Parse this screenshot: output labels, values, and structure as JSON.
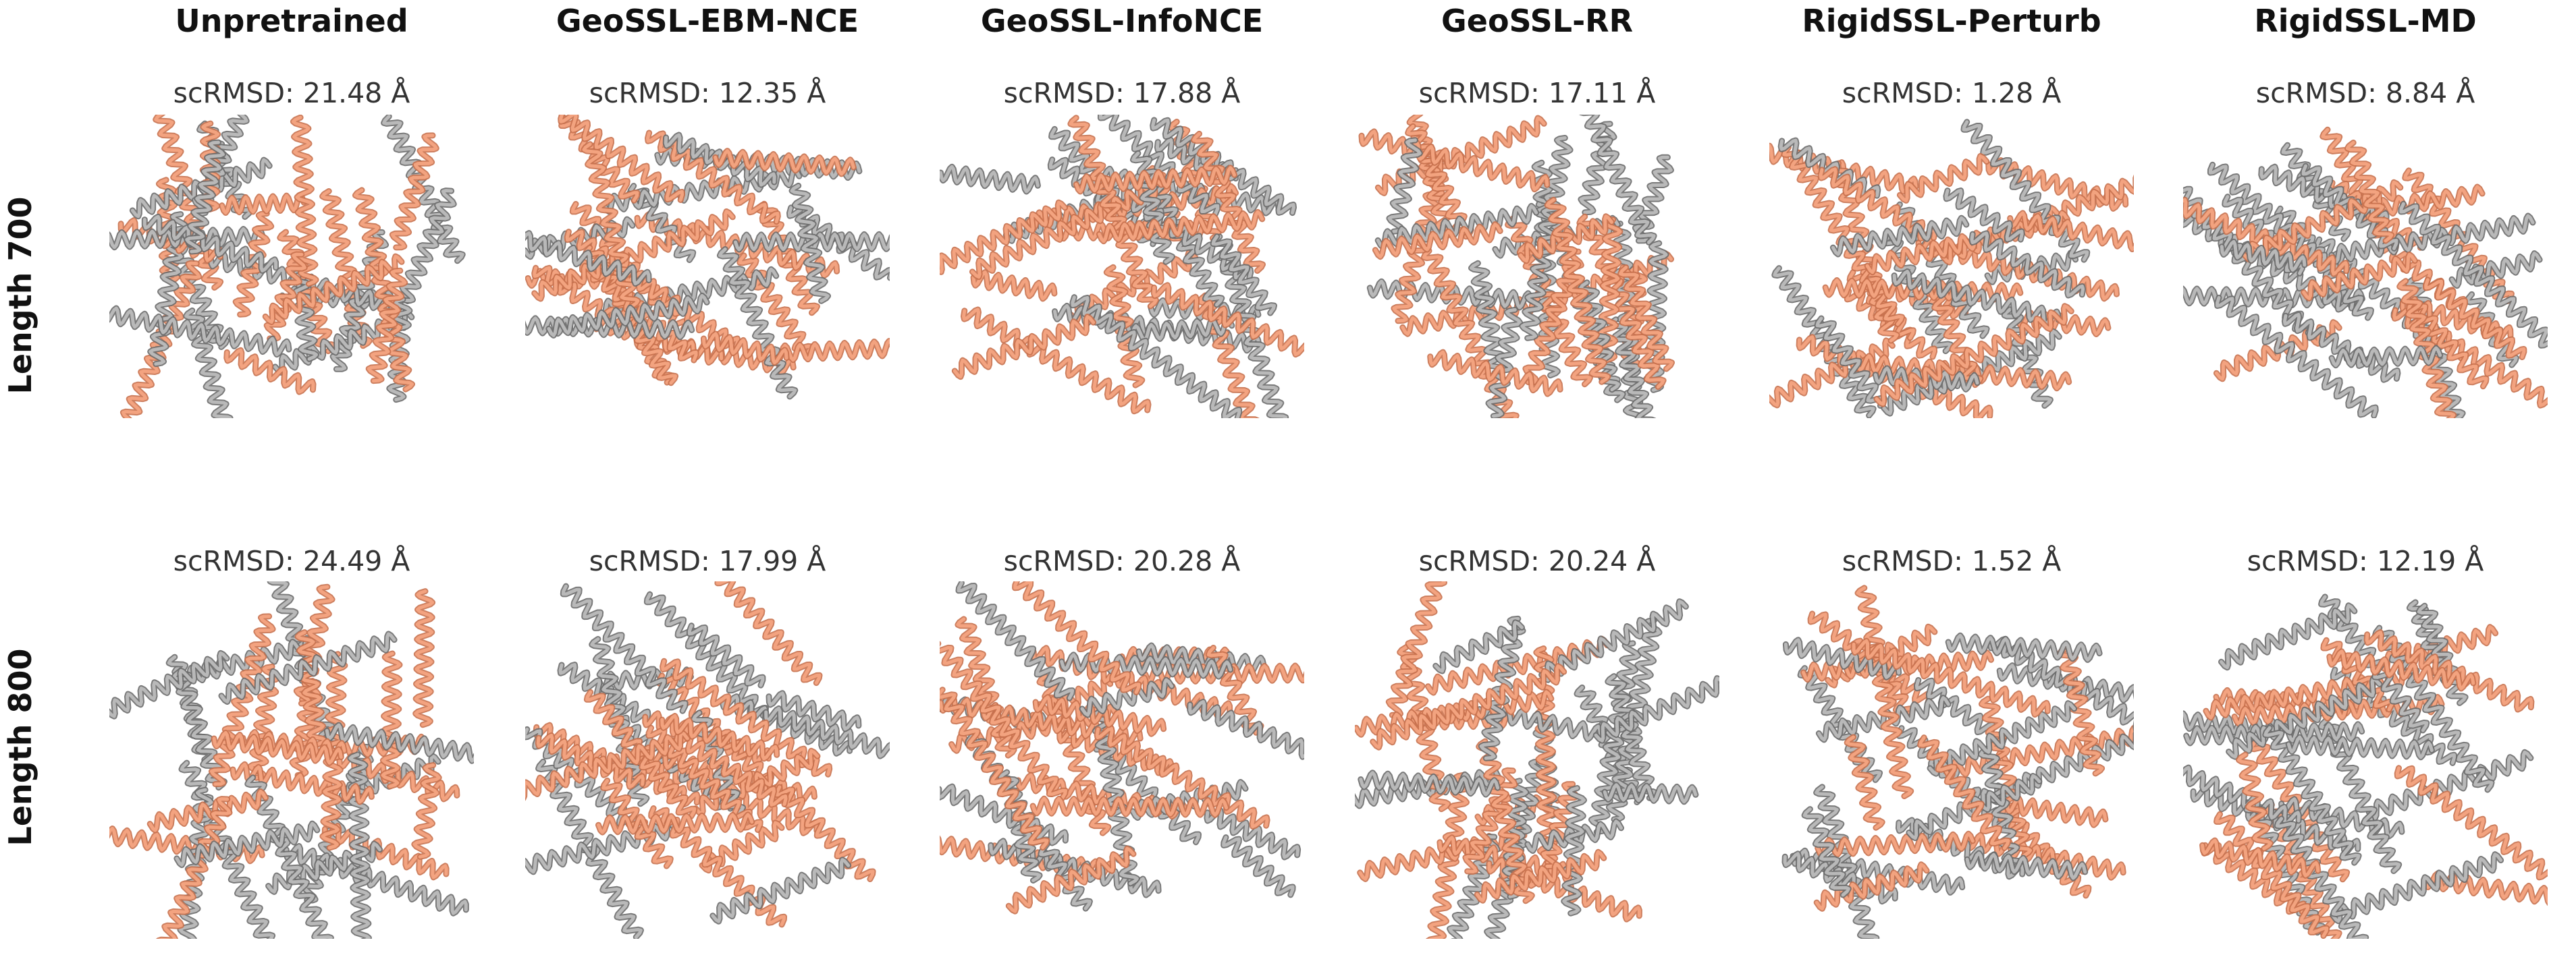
{
  "columns": [
    {
      "label": "Unpretrained"
    },
    {
      "label": "GeoSSL-EBM-NCE"
    },
    {
      "label": "GeoSSL-InfoNCE"
    },
    {
      "label": "GeoSSL-RR"
    },
    {
      "label": "RigidSSL-Perturb"
    },
    {
      "label": "RigidSSL-MD"
    }
  ],
  "rows": [
    {
      "label": "Length 700",
      "cells": [
        {
          "score": "scRMSD: 21.48 Å"
        },
        {
          "score": "scRMSD: 12.35 Å"
        },
        {
          "score": "scRMSD: 17.88 Å"
        },
        {
          "score": "scRMSD: 17.11 Å"
        },
        {
          "score": "scRMSD: 1.28 Å"
        },
        {
          "score": "scRMSD: 8.84 Å"
        }
      ]
    },
    {
      "label": "Length 800",
      "cells": [
        {
          "score": "scRMSD: 24.49 Å"
        },
        {
          "score": "scRMSD: 17.99 Å"
        },
        {
          "score": "scRMSD: 20.28 Å"
        },
        {
          "score": "scRMSD: 20.24 Å"
        },
        {
          "score": "scRMSD: 1.52 Å"
        },
        {
          "score": "scRMSD: 12.19 Å"
        }
      ]
    }
  ],
  "colors": {
    "designed": "#f4a582",
    "designed_dark": "#c8714e",
    "refolded": "#bdbdbd",
    "refolded_dark": "#6b6b6b"
  }
}
